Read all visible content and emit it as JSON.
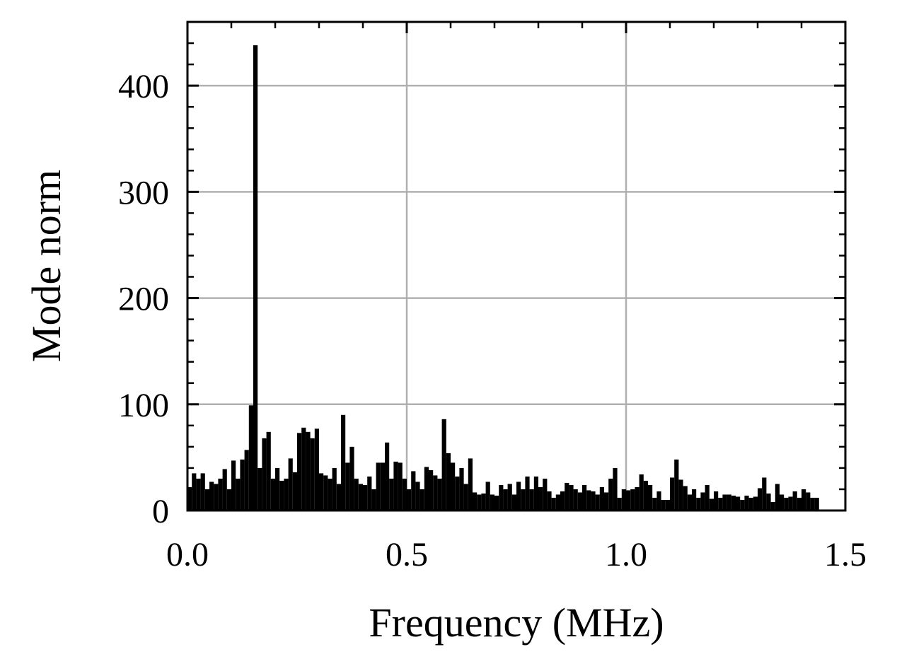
{
  "chart_data": {
    "type": "bar",
    "xlabel": "Frequency (MHz)",
    "ylabel": "Mode norm",
    "x": [
      0.0,
      0.01,
      0.02,
      0.03,
      0.04,
      0.05,
      0.06,
      0.07,
      0.08,
      0.09,
      0.1,
      0.11,
      0.12,
      0.13,
      0.14,
      0.15,
      0.16,
      0.17,
      0.18,
      0.19,
      0.2,
      0.21,
      0.22,
      0.23,
      0.24,
      0.25,
      0.26,
      0.27,
      0.28,
      0.29,
      0.3,
      0.31,
      0.32,
      0.33,
      0.34,
      0.35,
      0.36,
      0.37,
      0.38,
      0.39,
      0.4,
      0.41,
      0.42,
      0.43,
      0.44,
      0.45,
      0.46,
      0.47,
      0.48,
      0.49,
      0.5,
      0.51,
      0.52,
      0.53,
      0.54,
      0.55,
      0.56,
      0.57,
      0.58,
      0.59,
      0.6,
      0.61,
      0.62,
      0.63,
      0.64,
      0.65,
      0.66,
      0.67,
      0.68,
      0.69,
      0.7,
      0.71,
      0.72,
      0.73,
      0.74,
      0.75,
      0.76,
      0.77,
      0.78,
      0.79,
      0.8,
      0.81,
      0.82,
      0.83,
      0.84,
      0.85,
      0.86,
      0.87,
      0.88,
      0.89,
      0.9,
      0.91,
      0.92,
      0.93,
      0.94,
      0.95,
      0.96,
      0.97,
      0.98,
      0.99,
      1.0,
      1.01,
      1.02,
      1.03,
      1.04,
      1.05,
      1.06,
      1.07,
      1.08,
      1.09,
      1.1,
      1.11,
      1.12,
      1.13,
      1.14,
      1.15,
      1.16,
      1.17,
      1.18,
      1.19,
      1.2,
      1.21,
      1.22,
      1.23,
      1.24,
      1.25,
      1.26,
      1.27,
      1.28,
      1.29,
      1.3,
      1.31,
      1.32,
      1.33,
      1.34,
      1.35,
      1.36,
      1.37,
      1.38,
      1.39,
      1.4,
      1.41,
      1.42,
      1.43
    ],
    "values": [
      22,
      35,
      30,
      35,
      20,
      27,
      25,
      30,
      39,
      20,
      47,
      30,
      48,
      57,
      99,
      438,
      40,
      68,
      74,
      30,
      40,
      28,
      30,
      49,
      36,
      73,
      78,
      74,
      68,
      77,
      35,
      33,
      30,
      40,
      25,
      90,
      45,
      60,
      30,
      25,
      24,
      32,
      20,
      45,
      45,
      64,
      30,
      46,
      45,
      30,
      20,
      37,
      27,
      20,
      41,
      38,
      33,
      30,
      86,
      54,
      45,
      32,
      40,
      25,
      49,
      17,
      15,
      16,
      27,
      15,
      14,
      24,
      20,
      25,
      15,
      27,
      20,
      32,
      20,
      32,
      22,
      30,
      18,
      12,
      15,
      18,
      26,
      24,
      20,
      17,
      24,
      19,
      18,
      15,
      22,
      17,
      30,
      40,
      12,
      20,
      19,
      20,
      22,
      34,
      28,
      24,
      12,
      18,
      10,
      10,
      31,
      48,
      29,
      23,
      15,
      20,
      12,
      17,
      24,
      11,
      18,
      12,
      15,
      15,
      14,
      13,
      10,
      14,
      12,
      13,
      21,
      31,
      16,
      8,
      25,
      15,
      12,
      13,
      18,
      12,
      20,
      17,
      12,
      12
    ],
    "color": "#000000",
    "xlim": [
      0,
      1.5
    ],
    "ylim": [
      0,
      460
    ],
    "xticks": [
      {
        "value": 0,
        "label": "0.0"
      },
      0.5,
      {
        "value": 1,
        "label": "1.0"
      },
      1.5
    ],
    "yticks": [
      0,
      100,
      200,
      300,
      400
    ],
    "xminorticks": [
      0.1,
      0.2,
      0.3,
      0.4,
      0.6,
      0.7,
      0.8,
      0.9,
      1.1,
      1.2,
      1.3,
      1.4
    ],
    "yminorticks": [
      20,
      40,
      60,
      80,
      120,
      140,
      160,
      180,
      220,
      240,
      260,
      280,
      320,
      340,
      360,
      380,
      420,
      440
    ],
    "grid": true
  }
}
